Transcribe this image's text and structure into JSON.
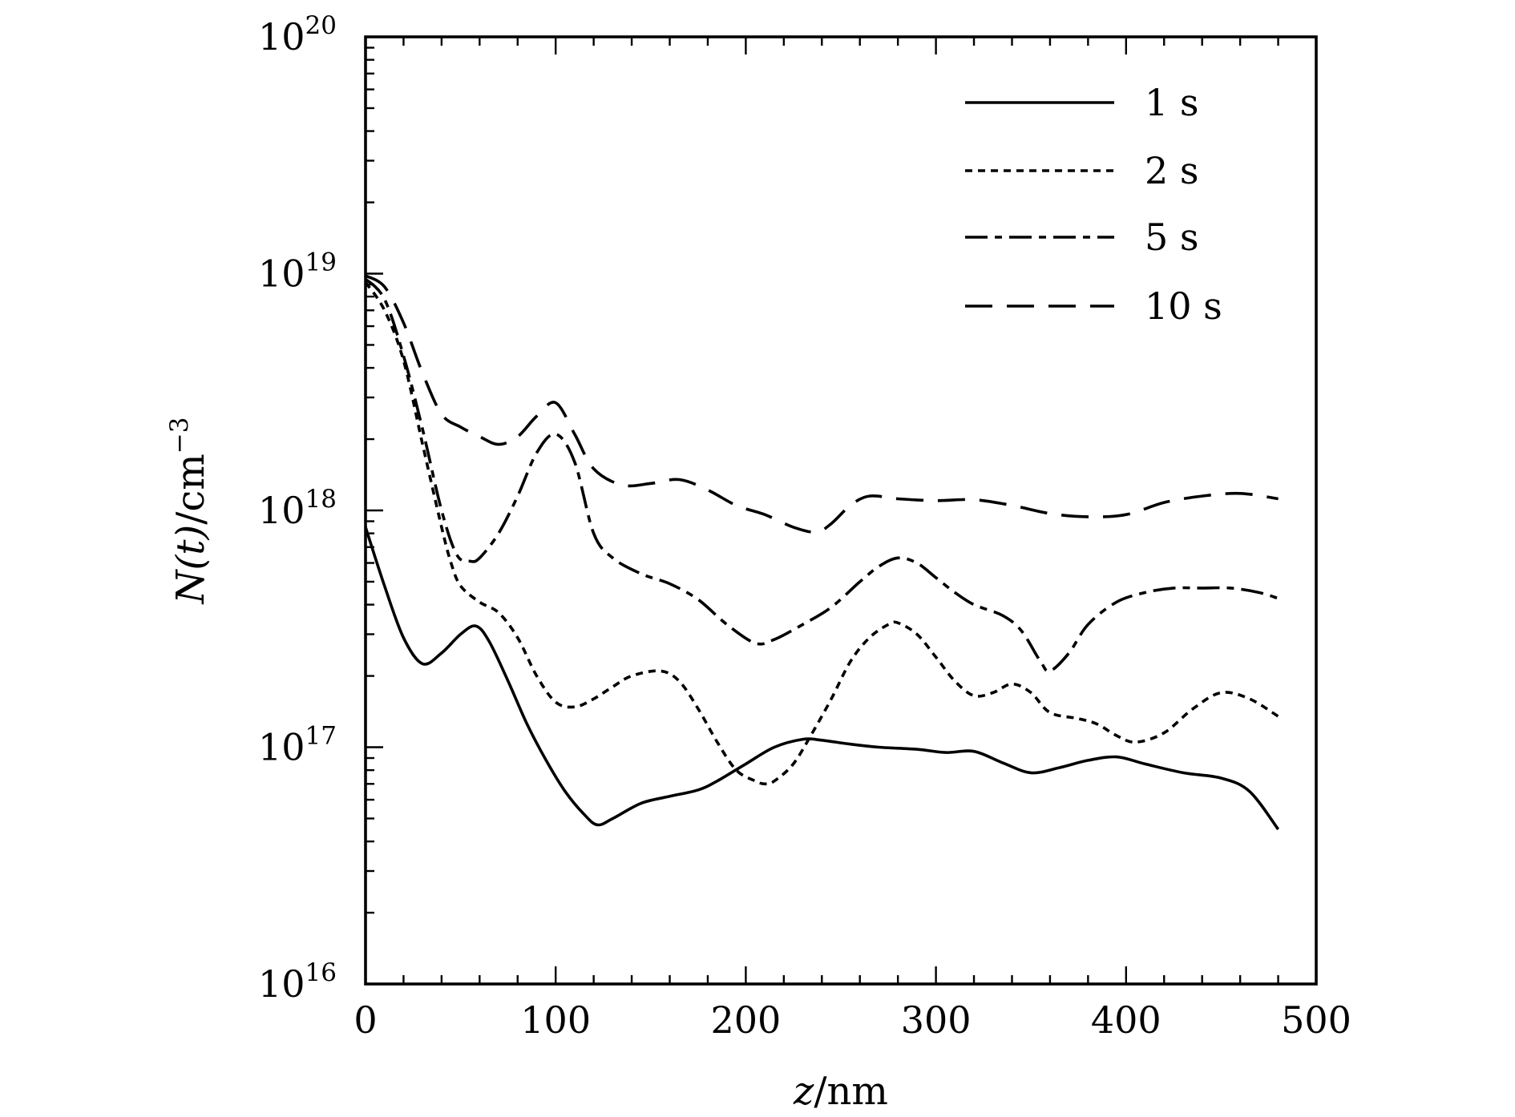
{
  "chart_data": {
    "type": "line",
    "xlabel": {
      "var": "z",
      "unit": "nm"
    },
    "ylabel": {
      "var": "N(t)",
      "unit": "cm",
      "unit_exp": "−3"
    },
    "xlim": [
      0,
      500
    ],
    "ylim": [
      1e+16,
      1e+20
    ],
    "yscale": "log",
    "x_ticks": [
      "0",
      "100",
      "200",
      "300",
      "400",
      "500"
    ],
    "y_ticks": [
      {
        "base": "10",
        "exp": "16"
      },
      {
        "base": "10",
        "exp": "17"
      },
      {
        "base": "10",
        "exp": "18"
      },
      {
        "base": "10",
        "exp": "19"
      },
      {
        "base": "10",
        "exp": "20"
      }
    ],
    "legend_position": "top-right",
    "series": [
      {
        "name": "1 s",
        "dash": "solid",
        "x": [
          0,
          10,
          20,
          30,
          40,
          50,
          58,
          65,
          75,
          85,
          95,
          105,
          115,
          122,
          130,
          145,
          160,
          175,
          185,
          200,
          215,
          230,
          240,
          255,
          270,
          290,
          305,
          320,
          335,
          350,
          365,
          380,
          395,
          410,
          430,
          450,
          465,
          480
        ],
        "y": [
          8.5e+17,
          4.8e+17,
          2.9e+17,
          2.25e+17,
          2.5e+17,
          3e+17,
          3.25e+17,
          2.8e+17,
          1.9e+17,
          1.25e+17,
          8.8e+16,
          6.5e+16,
          5.2e+16,
          4.7e+16,
          5e+16,
          5.8e+16,
          6.2e+16,
          6.6e+16,
          7.2e+16,
          8.5e+16,
          1e+17,
          1.08e+17,
          1.07e+17,
          1.03e+17,
          1e+17,
          9.8e+16,
          9.5e+16,
          9.6e+16,
          8.6e+16,
          7.8e+16,
          8.2e+16,
          8.8e+16,
          9.1e+16,
          8.5e+16,
          7.8e+16,
          7.4e+16,
          6.5e+16,
          4.5e+16
        ]
      },
      {
        "name": "2 s",
        "dash": "short dash",
        "x": [
          0,
          10,
          20,
          30,
          40,
          45,
          50,
          60,
          70,
          80,
          90,
          100,
          110,
          120,
          130,
          140,
          155,
          165,
          175,
          185,
          195,
          205,
          210,
          215,
          225,
          235,
          245,
          255,
          265,
          275,
          280,
          290,
          300,
          310,
          320,
          330,
          340,
          350,
          360,
          375,
          385,
          395,
          405,
          420,
          435,
          450,
          465,
          480
        ],
        "y": [
          9.2e+18,
          7e+18,
          4.3e+18,
          1.9e+18,
          8.5e+17,
          6e+17,
          4.8e+17,
          4.1e+17,
          3.7e+17,
          2.9e+17,
          2e+17,
          1.55e+17,
          1.48e+17,
          1.6e+17,
          1.8e+17,
          2e+17,
          2.1e+17,
          1.9e+17,
          1.45e+17,
          1.05e+17,
          8e+16,
          7.2e+16,
          7e+16,
          7.2e+16,
          8.5e+16,
          1.15e+17,
          1.6e+17,
          2.3e+17,
          2.9e+17,
          3.3e+17,
          3.35e+17,
          3e+17,
          2.4e+17,
          1.9e+17,
          1.65e+17,
          1.7e+17,
          1.85e+17,
          1.7e+17,
          1.4e+17,
          1.32e+17,
          1.25e+17,
          1.12e+17,
          1.05e+17,
          1.15e+17,
          1.45e+17,
          1.7e+17,
          1.6e+17,
          1.35e+17
        ]
      },
      {
        "name": "5 s",
        "dash": "long-short dash",
        "x": [
          0,
          10,
          20,
          30,
          40,
          48,
          55,
          60,
          70,
          80,
          90,
          100,
          110,
          120,
          130,
          145,
          160,
          175,
          190,
          205,
          215,
          230,
          245,
          260,
          270,
          280,
          290,
          300,
          310,
          320,
          335,
          345,
          355,
          360,
          370,
          380,
          395,
          410,
          425,
          440,
          455,
          470,
          480
        ],
        "y": [
          9.5e+18,
          7.8e+18,
          4.5e+18,
          2.2e+18,
          1e+18,
          6.5e+17,
          6.1e+17,
          6.3e+17,
          8e+17,
          1.15e+18,
          1.75e+18,
          2.1e+18,
          1.6e+18,
          8e+17,
          6.3e+17,
          5.4e+17,
          4.9e+17,
          4.2e+17,
          3.3e+17,
          2.75e+17,
          2.85e+17,
          3.3e+17,
          3.9e+17,
          5e+17,
          5.8e+17,
          6.3e+17,
          6e+17,
          5.2e+17,
          4.5e+17,
          4e+17,
          3.6e+17,
          3.1e+17,
          2.3e+17,
          2.1e+17,
          2.5e+17,
          3.3e+17,
          4.1e+17,
          4.5e+17,
          4.7e+17,
          4.7e+17,
          4.7e+17,
          4.5e+17,
          4.25e+17
        ]
      },
      {
        "name": "10 s",
        "dash": "long dash",
        "x": [
          0,
          10,
          20,
          30,
          40,
          50,
          60,
          70,
          80,
          90,
          100,
          110,
          120,
          135,
          150,
          165,
          180,
          195,
          210,
          225,
          237,
          245,
          255,
          265,
          280,
          300,
          320,
          340,
          360,
          380,
          400,
          420,
          440,
          460,
          480
        ],
        "y": [
          9.8e+18,
          8.8e+18,
          6.2e+18,
          3.8e+18,
          2.55e+18,
          2.25e+18,
          2.05e+18,
          1.9e+18,
          2.05e+18,
          2.5e+18,
          2.85e+18,
          2.1e+18,
          1.5e+18,
          1.28e+18,
          1.3e+18,
          1.35e+18,
          1.22e+18,
          1.05e+18,
          9.6e+17,
          8.5e+17,
          8.1e+17,
          8.8e+17,
          1.05e+18,
          1.15e+18,
          1.12e+18,
          1.1e+18,
          1.11e+18,
          1.05e+18,
          9.7e+17,
          9.4e+17,
          9.6e+17,
          1.08e+18,
          1.15e+18,
          1.18e+18,
          1.12e+18
        ]
      }
    ]
  }
}
